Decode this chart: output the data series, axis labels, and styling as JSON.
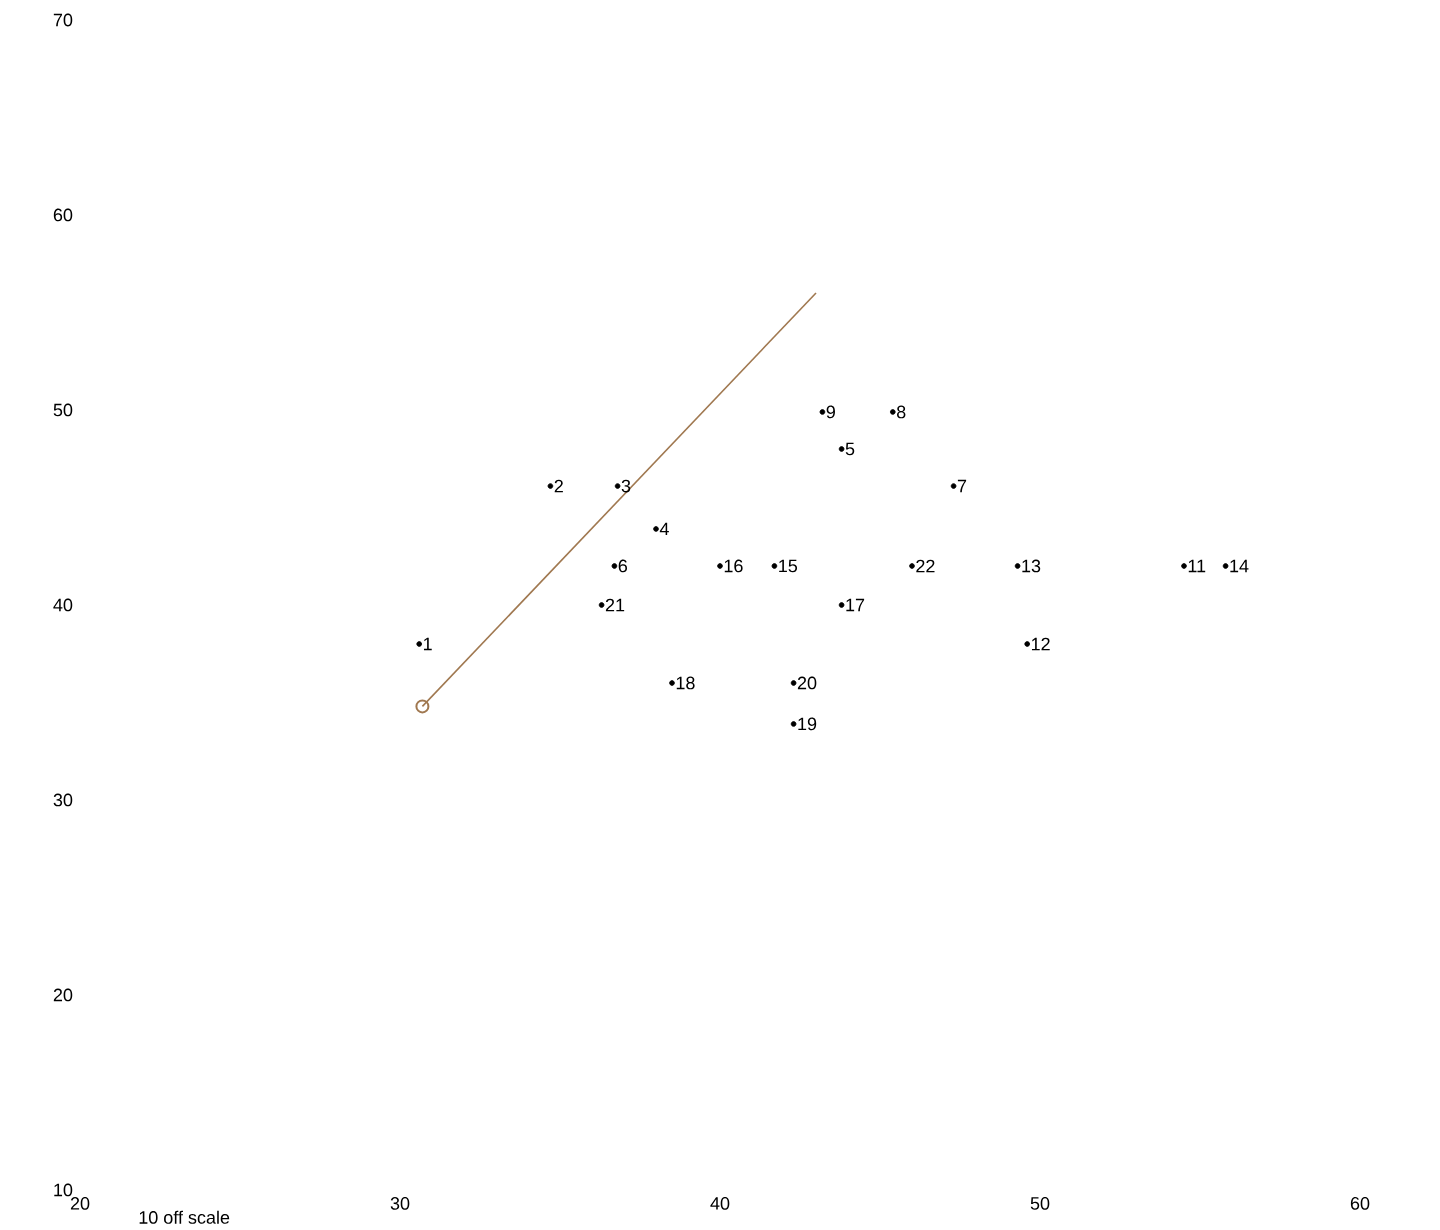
{
  "chart_data": {
    "type": "scatter",
    "xlim": [
      20,
      60
    ],
    "ylim": [
      10,
      70
    ],
    "xticks": [
      20,
      30,
      40,
      50,
      60
    ],
    "yticks": [
      10,
      20,
      30,
      40,
      50,
      60,
      70
    ],
    "grid": false,
    "series": [
      {
        "type": "line",
        "x": [
          30.7,
          43.0
        ],
        "values": [
          34.8,
          56.0
        ],
        "color": "#a07850",
        "marker": "circle",
        "line_style": "solid"
      },
      {
        "name": "1",
        "x": [
          30.6
        ],
        "values": [
          38.0
        ],
        "color": "#000000",
        "marker": "circle"
      },
      {
        "name": "2",
        "x": [
          34.7
        ],
        "values": [
          46.1
        ],
        "color": "#000000",
        "marker": "circle"
      },
      {
        "name": "3",
        "x": [
          36.8
        ],
        "values": [
          46.1
        ],
        "color": "#000000",
        "marker": "circle"
      },
      {
        "name": "4",
        "x": [
          38.0
        ],
        "values": [
          43.9
        ],
        "color": "#000000",
        "marker": "circle"
      },
      {
        "name": "5",
        "x": [
          43.8
        ],
        "values": [
          48.0
        ],
        "color": "#000000",
        "marker": "circle"
      },
      {
        "name": "6",
        "x": [
          36.7
        ],
        "values": [
          42.0
        ],
        "color": "#000000",
        "marker": "circle"
      },
      {
        "name": "7",
        "x": [
          47.3
        ],
        "values": [
          46.1
        ],
        "color": "#000000",
        "marker": "circle"
      },
      {
        "name": "8",
        "x": [
          45.4
        ],
        "values": [
          49.9
        ],
        "color": "#000000",
        "marker": "circle"
      },
      {
        "name": "9",
        "x": [
          43.2
        ],
        "values": [
          49.9
        ],
        "color": "#000000",
        "marker": "circle"
      },
      {
        "name": "11",
        "x": [
          54.5
        ],
        "values": [
          42.0
        ],
        "color": "#000000",
        "marker": "circle"
      },
      {
        "name": "12",
        "x": [
          49.6
        ],
        "values": [
          38.0
        ],
        "color": "#000000",
        "marker": "circle"
      },
      {
        "name": "13",
        "x": [
          49.3
        ],
        "values": [
          42.0
        ],
        "color": "#000000",
        "marker": "circle"
      },
      {
        "name": "14",
        "x": [
          55.8
        ],
        "values": [
          42.0
        ],
        "color": "#000000",
        "marker": "circle"
      },
      {
        "name": "15",
        "x": [
          41.7
        ],
        "values": [
          42.0
        ],
        "color": "#000000",
        "marker": "circle"
      },
      {
        "name": "16",
        "x": [
          40.0
        ],
        "values": [
          42.0
        ],
        "color": "#000000",
        "marker": "circle"
      },
      {
        "name": "17",
        "x": [
          43.8
        ],
        "values": [
          40.0
        ],
        "color": "#000000",
        "marker": "circle"
      },
      {
        "name": "18",
        "x": [
          38.5
        ],
        "values": [
          36.0
        ],
        "color": "#000000",
        "marker": "circle"
      },
      {
        "name": "19",
        "x": [
          42.3
        ],
        "values": [
          33.9
        ],
        "color": "#000000",
        "marker": "circle"
      },
      {
        "name": "20",
        "x": [
          42.3
        ],
        "values": [
          36.0
        ],
        "color": "#000000",
        "marker": "circle"
      },
      {
        "name": "21",
        "x": [
          36.3
        ],
        "values": [
          40.0
        ],
        "color": "#000000",
        "marker": "circle"
      },
      {
        "name": "22",
        "x": [
          46.0
        ],
        "values": [
          42.0
        ],
        "color": "#000000",
        "marker": "circle"
      }
    ],
    "annotations": [
      "10 off scale"
    ]
  }
}
